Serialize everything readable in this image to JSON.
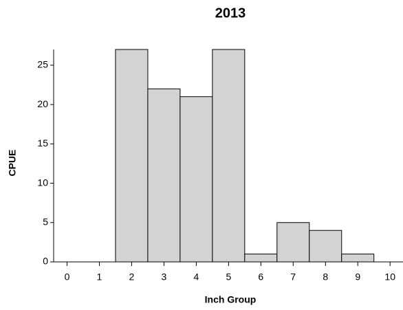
{
  "chart_data": {
    "type": "histogram",
    "title": "2013",
    "x_label": "Inch Group",
    "y_label": "CPUE",
    "bins": [
      1.5,
      2.5,
      3.5,
      4.5,
      5.5,
      6.5,
      7.5,
      8.5,
      9.5
    ],
    "values": [
      27,
      22,
      21,
      27,
      1,
      5,
      4,
      1
    ],
    "color": "#d3d3d3",
    "xlim": [
      -0.5,
      10.4
    ],
    "xticks": [
      0,
      1,
      2,
      3,
      4,
      5,
      6,
      7,
      8,
      9,
      10
    ],
    "ylim": [
      0,
      27
    ],
    "yticks": [
      0,
      5,
      10,
      15,
      20,
      25
    ],
    "grid": false
  }
}
